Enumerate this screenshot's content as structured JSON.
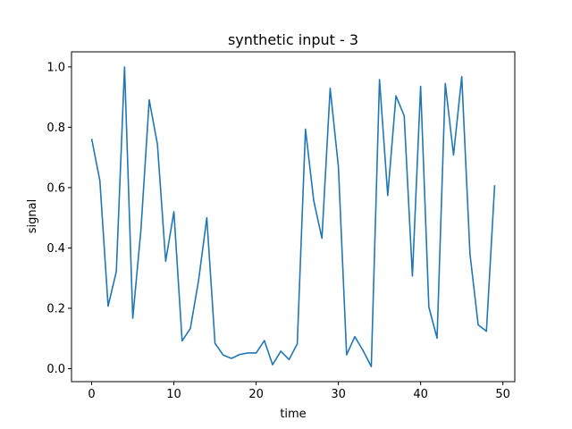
{
  "chart_data": {
    "type": "line",
    "title": "synthetic input - 3",
    "xlabel": "time",
    "ylabel": "signal",
    "xlim": [
      -2.45,
      51.45
    ],
    "ylim": [
      -0.043,
      1.05
    ],
    "grid": false,
    "xticks": [
      0,
      10,
      20,
      30,
      40,
      50
    ],
    "yticks": [
      0.0,
      0.2,
      0.4,
      0.6,
      0.8,
      1.0
    ],
    "xtick_labels": [
      "0",
      "10",
      "20",
      "30",
      "40",
      "50"
    ],
    "ytick_labels": [
      "0.0",
      "0.2",
      "0.4",
      "0.6",
      "0.8",
      "1.0"
    ],
    "series": [
      {
        "color": "#1f77b4",
        "x": [
          0,
          1,
          2,
          3,
          4,
          5,
          6,
          7,
          8,
          9,
          10,
          11,
          12,
          13,
          14,
          15,
          16,
          17,
          18,
          19,
          20,
          21,
          22,
          23,
          24,
          25,
          26,
          27,
          28,
          29,
          30,
          31,
          32,
          33,
          34,
          35,
          36,
          37,
          38,
          39,
          40,
          41,
          42,
          43,
          44,
          45,
          46,
          47,
          48,
          49
        ],
        "values": [
          0.762,
          0.623,
          0.207,
          0.322,
          1.0,
          0.167,
          0.463,
          0.891,
          0.743,
          0.356,
          0.52,
          0.092,
          0.133,
          0.292,
          0.5,
          0.084,
          0.045,
          0.034,
          0.047,
          0.052,
          0.052,
          0.093,
          0.013,
          0.058,
          0.03,
          0.082,
          0.794,
          0.557,
          0.432,
          0.929,
          0.67,
          0.046,
          0.106,
          0.06,
          0.007,
          0.958,
          0.574,
          0.904,
          0.838,
          0.307,
          0.936,
          0.204,
          0.101,
          0.945,
          0.708,
          0.968,
          0.38,
          0.145,
          0.124,
          0.608
        ]
      }
    ]
  }
}
